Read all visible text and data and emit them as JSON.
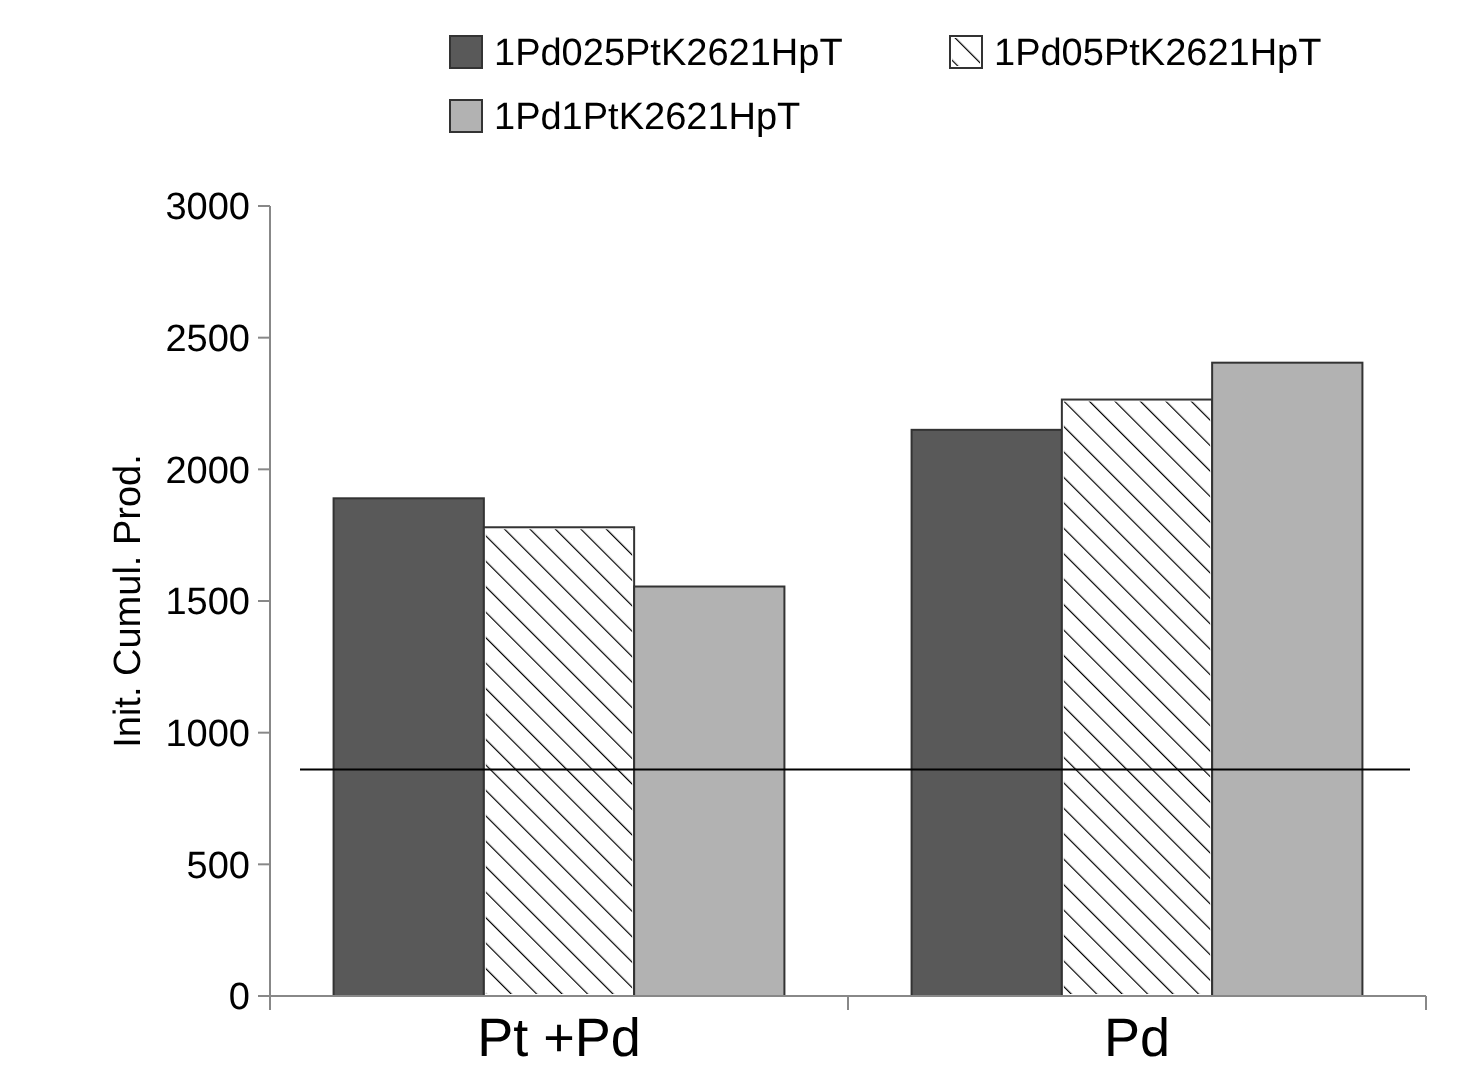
{
  "chart_data": {
    "type": "bar",
    "ylabel": "Init. Cumul. Prod.",
    "categories": [
      "Pt +Pd",
      "Pd"
    ],
    "series": [
      {
        "name": "1Pd025PtK2621HpT",
        "color": "#595959",
        "values": [
          1890,
          2150
        ]
      },
      {
        "name": "1Pd05PtK2621HpT",
        "color": "#ffffff",
        "values": [
          1780,
          2265
        ]
      },
      {
        "name": "1Pd1PtK2621HpT",
        "color": "#b2b2b2",
        "values": [
          1555,
          2405
        ]
      }
    ],
    "ylim": [
      0,
      3000
    ],
    "yticks": [
      0,
      500,
      1000,
      1500,
      2000,
      2500,
      3000
    ],
    "grid": false,
    "legend": "top",
    "ref_lines": [
      {
        "axis": "y",
        "value": 860,
        "color": "#000000"
      }
    ]
  }
}
